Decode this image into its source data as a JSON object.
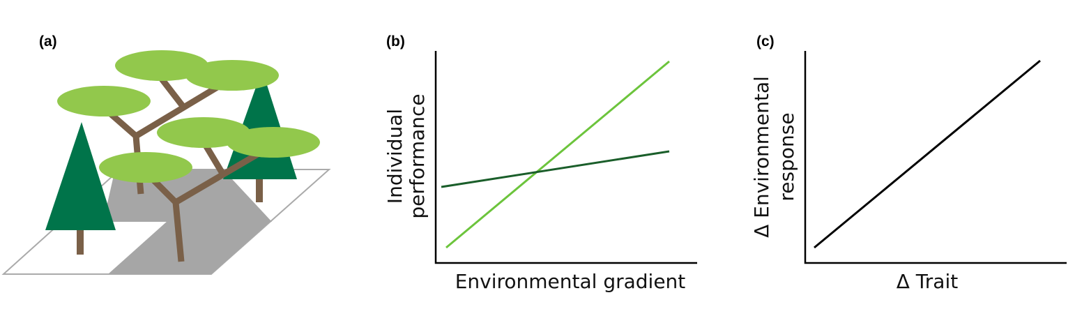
{
  "panels": [
    {
      "label": "(a)"
    },
    {
      "label": "(b)",
      "x_label": "Environmental gradient",
      "y_label": [
        "Individual",
        "performance"
      ]
    },
    {
      "label": "(c)",
      "x_label": "Δ Trait",
      "y_label": [
        "Δ Environmental",
        "response"
      ]
    }
  ]
}
